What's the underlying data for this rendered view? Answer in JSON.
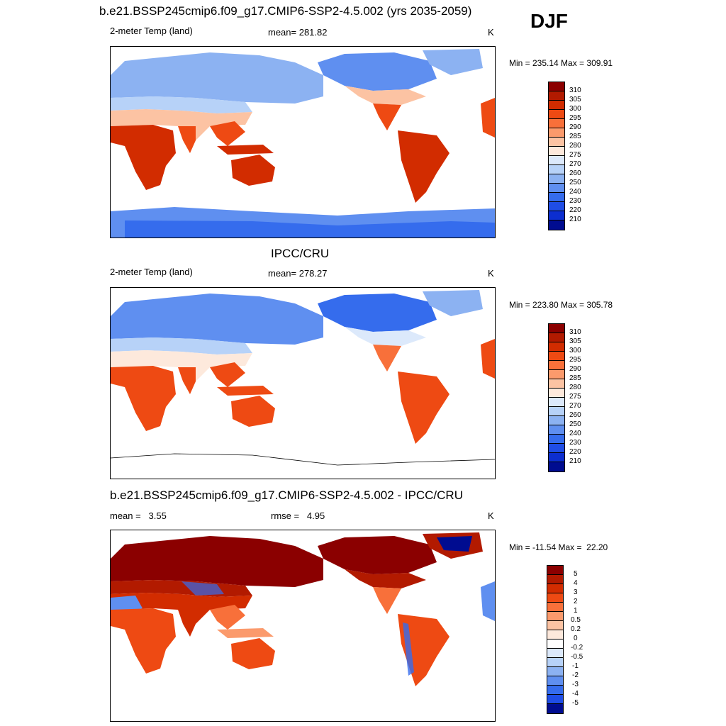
{
  "season": "DJF",
  "panels": [
    {
      "title": "b.e21.BSSP245cmip6.f09_g17.CMIP6-SSP2-4.5.002 (yrs 2035-2059)",
      "left_label": "2-meter Temp (land)",
      "center_label": "mean= 281.82",
      "unit": "K",
      "minmax": "Min = 235.14 Max = 309.91",
      "colorbar": [
        "310",
        "305",
        "300",
        "295",
        "290",
        "285",
        "280",
        "275",
        "270",
        "260",
        "250",
        "240",
        "230",
        "220",
        "210"
      ]
    },
    {
      "title": "IPCC/CRU",
      "left_label": "2-meter Temp (land)",
      "center_label": "mean= 278.27",
      "unit": "K",
      "minmax": "Min = 223.80 Max = 305.78",
      "colorbar": [
        "310",
        "305",
        "300",
        "295",
        "290",
        "285",
        "280",
        "275",
        "270",
        "260",
        "250",
        "240",
        "230",
        "220",
        "210"
      ]
    },
    {
      "title": "b.e21.BSSP245cmip6.f09_g17.CMIP6-SSP2-4.5.002 - IPCC/CRU",
      "left_label": "mean =   3.55",
      "center_label": "rmse =   4.95",
      "unit": "K",
      "minmax": "Min = -11.54 Max =  22.20",
      "colorbar": [
        "5",
        "4",
        "3",
        "2",
        "1",
        "0.5",
        "0.2",
        "0",
        "-0.2",
        "-0.5",
        "-1",
        "-2",
        "-3",
        "-4",
        "-5"
      ]
    }
  ],
  "colors": {
    "temp_scale": [
      "#8b0000",
      "#b21a00",
      "#d22c00",
      "#ee4a13",
      "#f8703a",
      "#fb9a6c",
      "#fcc3a3",
      "#fde9dc",
      "#dce9fb",
      "#b7d2f8",
      "#8cb2f2",
      "#5f8ff0",
      "#356ced",
      "#1f4de6",
      "#0c2ed0",
      "#000c90"
    ],
    "diff_scale": [
      "#8b0000",
      "#b21a00",
      "#d22c00",
      "#ee4a13",
      "#f8703a",
      "#fb9a6c",
      "#fcc3a3",
      "#fde9dc",
      "#ffffff",
      "#dce9fb",
      "#b7d2f8",
      "#8cb2f2",
      "#5f8ff0",
      "#356ced",
      "#1f4de6",
      "#0c2ed0",
      "#000c90"
    ]
  }
}
